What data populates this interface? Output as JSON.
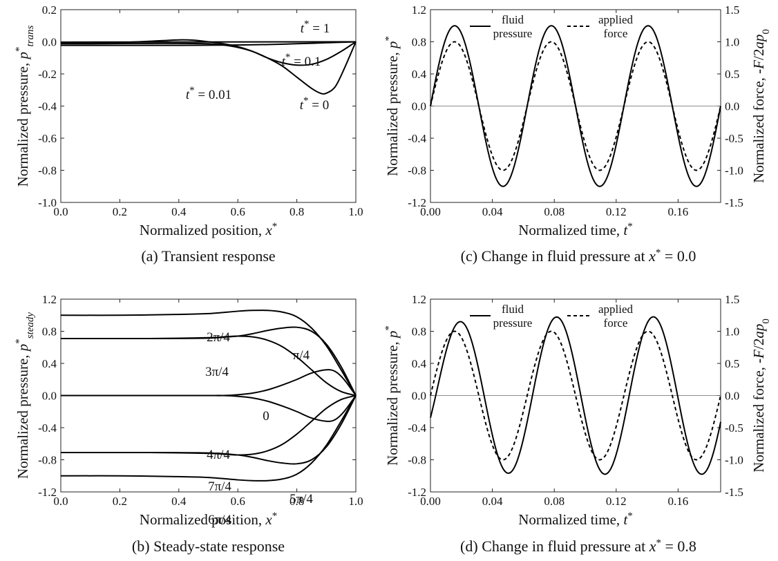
{
  "chart_data": [
    {
      "id": "a",
      "type": "line",
      "caption": "(a) Transient response",
      "xlabel": "Normalized position, x*",
      "ylabel": "Normalized pressure, p*trans",
      "xlim": [
        0,
        1
      ],
      "ylim": [
        -1,
        0.2
      ],
      "xticks": [
        "0.0",
        "0.2",
        "0.4",
        "0.6",
        "0.8",
        "1.0"
      ],
      "yticks": [
        "-1.0",
        "-0.8",
        "-0.6",
        "-0.4",
        "-0.2",
        "0.0",
        "0.2"
      ],
      "series": [
        {
          "name": "t* = 0",
          "label": "t* = 0",
          "x": [
            0,
            0.1,
            0.2,
            0.3,
            0.4,
            0.45,
            0.5,
            0.55,
            0.6,
            0.65,
            0.7,
            0.75,
            0.8,
            0.85,
            0.88,
            0.9,
            0.93,
            0.96,
            1.0
          ],
          "y": [
            -0.01,
            -0.01,
            -0.005,
            0.003,
            0.012,
            0.01,
            0.0,
            -0.012,
            -0.03,
            -0.06,
            -0.1,
            -0.15,
            -0.22,
            -0.29,
            -0.32,
            -0.32,
            -0.28,
            -0.17,
            0.0
          ]
        },
        {
          "name": "t* = 0.01",
          "label": "t* = 0.01",
          "x": [
            0,
            0.1,
            0.2,
            0.3,
            0.4,
            0.5,
            0.55,
            0.6,
            0.65,
            0.7,
            0.75,
            0.8,
            0.85,
            0.9,
            0.95,
            1.0
          ],
          "y": [
            -0.012,
            -0.012,
            -0.011,
            -0.01,
            -0.01,
            -0.012,
            -0.02,
            -0.035,
            -0.06,
            -0.1,
            -0.13,
            -0.145,
            -0.14,
            -0.11,
            -0.06,
            0.0
          ]
        },
        {
          "name": "t* = 0.1",
          "label": "t* = 0.1",
          "x": [
            0,
            0.2,
            0.4,
            0.5,
            0.6,
            0.7,
            0.8,
            0.9,
            1.0
          ],
          "y": [
            -0.022,
            -0.022,
            -0.022,
            -0.021,
            -0.02,
            -0.017,
            -0.012,
            -0.006,
            0.0
          ]
        },
        {
          "name": "t* = 1",
          "label": "t* = 1",
          "x": [
            0,
            1
          ],
          "y": [
            -0.002,
            0.0
          ]
        }
      ]
    },
    {
      "id": "b",
      "type": "line",
      "caption": "(b) Steady-state response",
      "xlabel": "Normalized position, x*",
      "ylabel": "Normalized pressure, p*steady",
      "xlim": [
        0,
        1
      ],
      "ylim": [
        -1.2,
        1.2
      ],
      "xticks": [
        "0.0",
        "0.2",
        "0.4",
        "0.6",
        "0.8",
        "1.0"
      ],
      "yticks": [
        "-1.2",
        "-0.8",
        "-0.4",
        "0.0",
        "0.4",
        "0.8",
        "1.2"
      ],
      "series": [
        {
          "name": "2π/4",
          "label": "2π/4",
          "x": [
            0,
            0.2,
            0.4,
            0.5,
            0.6,
            0.65,
            0.7,
            0.75,
            0.8,
            0.85,
            0.9,
            0.95,
            1.0
          ],
          "y": [
            1.0,
            1.0,
            1.01,
            1.02,
            1.05,
            1.06,
            1.06,
            1.04,
            0.98,
            0.84,
            0.62,
            0.32,
            0.0
          ]
        },
        {
          "name": "6π/4",
          "label": "6π/4",
          "x": [
            0,
            0.2,
            0.4,
            0.5,
            0.6,
            0.65,
            0.7,
            0.75,
            0.8,
            0.85,
            0.9,
            0.95,
            1.0
          ],
          "y": [
            -1.0,
            -1.0,
            -1.01,
            -1.02,
            -1.05,
            -1.06,
            -1.06,
            -1.04,
            -0.98,
            -0.84,
            -0.62,
            -0.32,
            0.0
          ]
        },
        {
          "name": "π/4",
          "label": "π/4",
          "x": [
            0,
            0.3,
            0.5,
            0.6,
            0.65,
            0.7,
            0.75,
            0.8,
            0.85,
            0.9,
            0.95,
            1.0
          ],
          "y": [
            0.71,
            0.71,
            0.715,
            0.74,
            0.77,
            0.81,
            0.84,
            0.85,
            0.8,
            0.64,
            0.36,
            0.0
          ]
        },
        {
          "name": "3π/4",
          "label": "3π/4",
          "x": [
            0,
            0.3,
            0.5,
            0.55,
            0.6,
            0.65,
            0.7,
            0.75,
            0.8,
            0.85,
            0.9,
            0.95,
            1.0
          ],
          "y": [
            0.71,
            0.71,
            0.72,
            0.73,
            0.74,
            0.73,
            0.69,
            0.61,
            0.48,
            0.32,
            0.16,
            0.05,
            0.0
          ]
        },
        {
          "name": "5π/4",
          "label": "5π/4",
          "x": [
            0,
            0.3,
            0.5,
            0.6,
            0.65,
            0.7,
            0.75,
            0.8,
            0.85,
            0.9,
            0.95,
            1.0
          ],
          "y": [
            -0.71,
            -0.71,
            -0.715,
            -0.74,
            -0.77,
            -0.81,
            -0.84,
            -0.85,
            -0.8,
            -0.64,
            -0.36,
            0.0
          ]
        },
        {
          "name": "7π/4",
          "label": "7π/4",
          "x": [
            0,
            0.3,
            0.5,
            0.55,
            0.6,
            0.65,
            0.7,
            0.75,
            0.8,
            0.85,
            0.9,
            0.95,
            1.0
          ],
          "y": [
            -0.71,
            -0.71,
            -0.72,
            -0.73,
            -0.74,
            -0.73,
            -0.69,
            -0.61,
            -0.48,
            -0.32,
            -0.16,
            -0.05,
            0.0
          ]
        },
        {
          "name": "0",
          "label": "0",
          "x": [
            0,
            0.4,
            0.5,
            0.55,
            0.6,
            0.65,
            0.7,
            0.75,
            0.8,
            0.85,
            0.9,
            0.93,
            0.96,
            1.0
          ],
          "y": [
            0.0,
            0.0,
            0.0,
            0.0,
            0.01,
            0.03,
            0.07,
            0.13,
            0.2,
            0.28,
            0.32,
            0.3,
            0.2,
            0.0
          ]
        },
        {
          "name": "4π/4",
          "label": "4π/4",
          "x": [
            0,
            0.4,
            0.5,
            0.55,
            0.6,
            0.65,
            0.7,
            0.75,
            0.8,
            0.85,
            0.9,
            0.93,
            0.96,
            1.0
          ],
          "y": [
            0.0,
            0.0,
            0.0,
            0.0,
            -0.01,
            -0.03,
            -0.07,
            -0.13,
            -0.2,
            -0.28,
            -0.32,
            -0.3,
            -0.2,
            0.0
          ]
        }
      ]
    },
    {
      "id": "c",
      "type": "line",
      "caption": "(c) Change in fluid pressure at x* = 0.0",
      "xlabel": "Normalized  time, t*",
      "ylabel": "Normalized pressure, p*",
      "y2label": "Normalized force, -F/2ap0",
      "xlim": [
        0,
        0.1875
      ],
      "ylim": [
        -1.2,
        1.2
      ],
      "y2lim": [
        -1.5,
        1.5
      ],
      "xticks": [
        "0.00",
        "0.04",
        "0.08",
        "0.12",
        "0.16"
      ],
      "yticks": [
        "-1.2",
        "-0.8",
        "-0.4",
        "0.0",
        "0.4",
        "0.8",
        "1.2"
      ],
      "y2ticks": [
        "-1.5",
        "-1.0",
        "-0.5",
        "0.0",
        "0.5",
        "1.0",
        "1.5"
      ],
      "legend": {
        "fluid": "fluid pressure",
        "force": "applied force"
      },
      "series": [
        {
          "name": "fluid pressure",
          "amplitude": 1.0,
          "period": 0.0625,
          "phase": 0.0,
          "style": "solid"
        },
        {
          "name": "applied force",
          "amplitude": 0.8,
          "period": 0.0625,
          "phase": 0.0,
          "style": "dashed"
        }
      ]
    },
    {
      "id": "d",
      "type": "line",
      "caption": "(d) Change in fluid pressure at x* = 0.8",
      "xlabel": "Normalized  time, t*",
      "ylabel": "Normalized pressure, p*",
      "y2label": "Normalized force, -F/2ap0",
      "xlim": [
        0,
        0.1875
      ],
      "ylim": [
        -1.2,
        1.2
      ],
      "y2lim": [
        -1.5,
        1.5
      ],
      "xticks": [
        "0.00",
        "0.04",
        "0.08",
        "0.12",
        "0.16"
      ],
      "yticks": [
        "-1.2",
        "-0.8",
        "-0.4",
        "0.0",
        "0.4",
        "0.8",
        "1.2"
      ],
      "y2ticks": [
        "-1.5",
        "-1.0",
        "-0.5",
        "0.0",
        "0.5",
        "1.0",
        "1.5"
      ],
      "legend": {
        "fluid": "fluid pressure",
        "force": "applied force"
      },
      "series": [
        {
          "name": "fluid pressure",
          "amplitude": 0.98,
          "period": 0.0625,
          "phase": 0.0034,
          "transient_decay": 0.02,
          "transient_amp": 0.16,
          "style": "solid"
        },
        {
          "name": "applied force",
          "amplitude": 0.8,
          "period": 0.0625,
          "phase": 0.0,
          "style": "dashed"
        }
      ]
    }
  ]
}
